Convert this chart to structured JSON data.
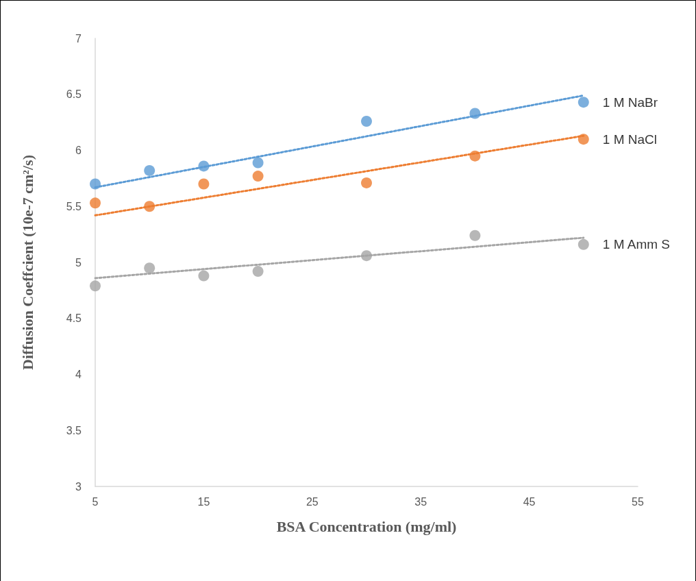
{
  "chart_data": {
    "type": "scatter",
    "xlabel": "BSA Concentration (mg/ml)",
    "ylabel": "Diffusion Coeffcient (10e-7 cm²/s)",
    "xlim": [
      5,
      55
    ],
    "xticks": [
      5,
      15,
      25,
      35,
      45,
      55
    ],
    "ylim": [
      3,
      7
    ],
    "yticks": [
      3,
      3.5,
      4,
      4.5,
      5,
      5.5,
      6,
      6.5,
      7
    ],
    "grid": false,
    "marker": "circle",
    "series": [
      {
        "name": "1 M NaBr",
        "color": "#5b9bd5",
        "x": [
          5,
          10,
          15,
          20,
          30,
          40,
          50
        ],
        "values": [
          5.7,
          5.82,
          5.86,
          5.89,
          6.26,
          6.33,
          6.43
        ]
      },
      {
        "name": "1 M NaCl",
        "color": "#ed7d31",
        "x": [
          5,
          10,
          15,
          20,
          30,
          40,
          50
        ],
        "values": [
          5.53,
          5.5,
          5.7,
          5.77,
          5.71,
          5.95,
          6.1
        ]
      },
      {
        "name": "1 M Amm S",
        "color": "#a5a5a5",
        "x": [
          5,
          10,
          15,
          20,
          30,
          40,
          50
        ],
        "values": [
          4.79,
          4.95,
          4.88,
          4.92,
          5.06,
          5.24,
          5.16
        ]
      },
      {
        "type": "line",
        "color": "#5b9bd5",
        "x": [
          5,
          50
        ],
        "values": [
          5.67,
          6.49
        ],
        "marker": "none",
        "line_style": "dotted"
      },
      {
        "type": "line",
        "color": "#ed7d31",
        "x": [
          5,
          50
        ],
        "values": [
          5.42,
          6.13
        ],
        "marker": "none",
        "line_style": "dotted"
      },
      {
        "type": "line",
        "color": "#a5a5a5",
        "x": [
          5,
          50
        ],
        "values": [
          4.86,
          5.22
        ],
        "marker": "none",
        "line_style": "dotted"
      }
    ]
  }
}
